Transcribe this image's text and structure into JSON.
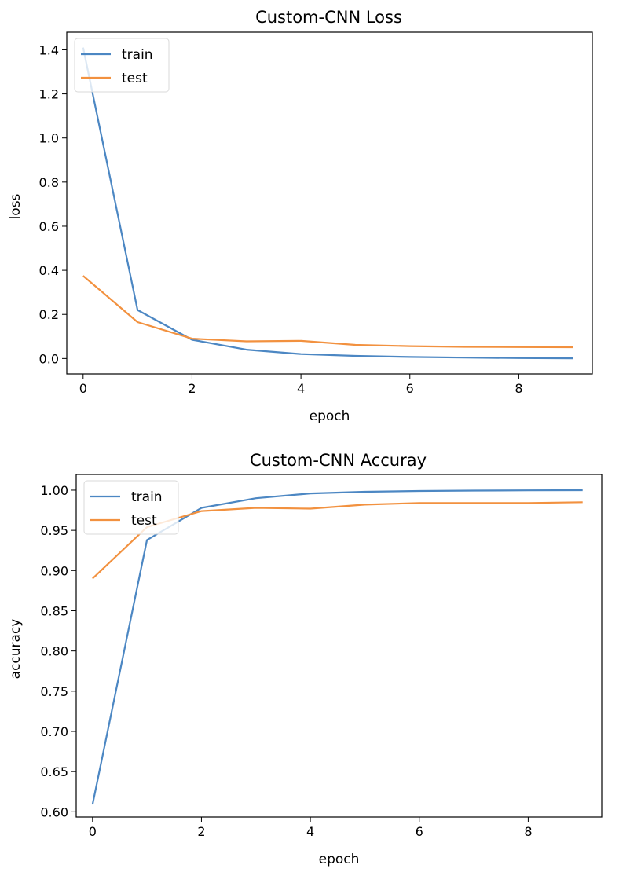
{
  "colors": {
    "train": "#4c87c3",
    "test": "#f2913f",
    "axes": "#000000"
  },
  "chart_data": [
    {
      "type": "line",
      "title": "Custom-CNN Loss",
      "xlabel": "epoch",
      "ylabel": "loss",
      "x": [
        0,
        1,
        2,
        3,
        4,
        5,
        6,
        7,
        8,
        9
      ],
      "xlim": [
        -0.3,
        9.35
      ],
      "ylim": [
        -0.07,
        1.48
      ],
      "xticks": [
        0,
        2,
        4,
        6,
        8
      ],
      "xtick_labels": [
        "0",
        "2",
        "4",
        "6",
        "8"
      ],
      "yticks": [
        0.0,
        0.2,
        0.4,
        0.6,
        0.8,
        1.0,
        1.2,
        1.4
      ],
      "ytick_labels": [
        "0.0",
        "0.2",
        "0.4",
        "0.6",
        "0.8",
        "1.0",
        "1.2",
        "1.4"
      ],
      "grid": false,
      "legend_position": "upper-left",
      "series": [
        {
          "name": "train",
          "color": "#4c87c3",
          "values": [
            1.41,
            0.22,
            0.085,
            0.04,
            0.02,
            0.012,
            0.007,
            0.004,
            0.002,
            0.001
          ]
        },
        {
          "name": "test",
          "color": "#f2913f",
          "values": [
            0.375,
            0.165,
            0.09,
            0.078,
            0.08,
            0.062,
            0.056,
            0.053,
            0.052,
            0.051
          ]
        }
      ]
    },
    {
      "type": "line",
      "title": "Custom-CNN Accuray",
      "xlabel": "epoch",
      "ylabel": "accuracy",
      "x": [
        0,
        1,
        2,
        3,
        4,
        5,
        6,
        7,
        8,
        9
      ],
      "xlim": [
        -0.3,
        9.35
      ],
      "ylim": [
        0.5935,
        1.0195
      ],
      "xticks": [
        0,
        2,
        4,
        6,
        8
      ],
      "xtick_labels": [
        "0",
        "2",
        "4",
        "6",
        "8"
      ],
      "yticks": [
        0.6,
        0.65,
        0.7,
        0.75,
        0.8,
        0.85,
        0.9,
        0.95,
        1.0
      ],
      "ytick_labels": [
        "0.60",
        "0.65",
        "0.70",
        "0.75",
        "0.80",
        "0.85",
        "0.90",
        "0.95",
        "1.00"
      ],
      "grid": false,
      "legend_position": "upper-left",
      "series": [
        {
          "name": "train",
          "color": "#4c87c3",
          "values": [
            0.609,
            0.938,
            0.978,
            0.99,
            0.996,
            0.998,
            0.999,
            0.9995,
            0.9998,
            1.0
          ]
        },
        {
          "name": "test",
          "color": "#f2913f",
          "values": [
            0.89,
            0.954,
            0.974,
            0.978,
            0.977,
            0.982,
            0.984,
            0.984,
            0.984,
            0.985
          ]
        }
      ]
    }
  ]
}
